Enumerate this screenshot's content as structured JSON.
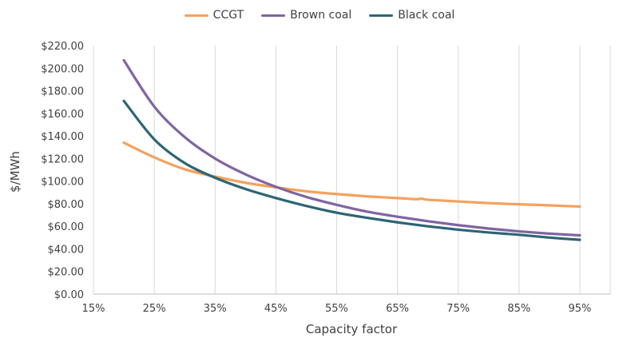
{
  "chart_data": {
    "type": "line",
    "xlabel": "Capacity factor",
    "ylabel": "$/MWh",
    "xlim": [
      15,
      100
    ],
    "ylim": [
      0,
      220
    ],
    "x_ticks": [
      "15%",
      "25%",
      "35%",
      "45%",
      "55%",
      "65%",
      "75%",
      "85%",
      "95%"
    ],
    "y_ticks": [
      "$0.00",
      "$20.00",
      "$40.00",
      "$60.00",
      "$80.00",
      "$100.00",
      "$120.00",
      "$140.00",
      "$160.00",
      "$180.00",
      "$200.00",
      "$220.00"
    ],
    "grid": "vertical",
    "legend_position": "top",
    "series": [
      {
        "name": "CCGT",
        "color": "#f4a15d",
        "x": [
          20,
          25,
          30,
          35,
          40,
          45,
          50,
          55,
          60,
          65,
          68,
          69,
          70,
          75,
          80,
          85,
          90,
          95
        ],
        "y": [
          134,
          121,
          110.5,
          104,
          98.5,
          94.5,
          91,
          88.5,
          86.5,
          85,
          84,
          84.5,
          83.5,
          82,
          80.5,
          79.5,
          78.5,
          77.5
        ]
      },
      {
        "name": "Brown coal",
        "color": "#8064a2",
        "x": [
          20,
          25,
          30,
          35,
          40,
          45,
          50,
          55,
          60,
          65,
          70,
          75,
          80,
          85,
          90,
          95
        ],
        "y": [
          207,
          166,
          139,
          120,
          106,
          95,
          86,
          79,
          73,
          68.5,
          64.5,
          61,
          58,
          55.5,
          53.5,
          52
        ]
      },
      {
        "name": "Black coal",
        "color": "#2d6574",
        "x": [
          20,
          25,
          30,
          35,
          40,
          45,
          50,
          55,
          60,
          65,
          70,
          75,
          80,
          85,
          90,
          95
        ],
        "y": [
          171,
          137,
          116,
          103,
          93,
          85,
          78,
          72,
          67.5,
          63.5,
          60,
          57,
          54.5,
          52.5,
          50,
          48
        ]
      }
    ]
  }
}
